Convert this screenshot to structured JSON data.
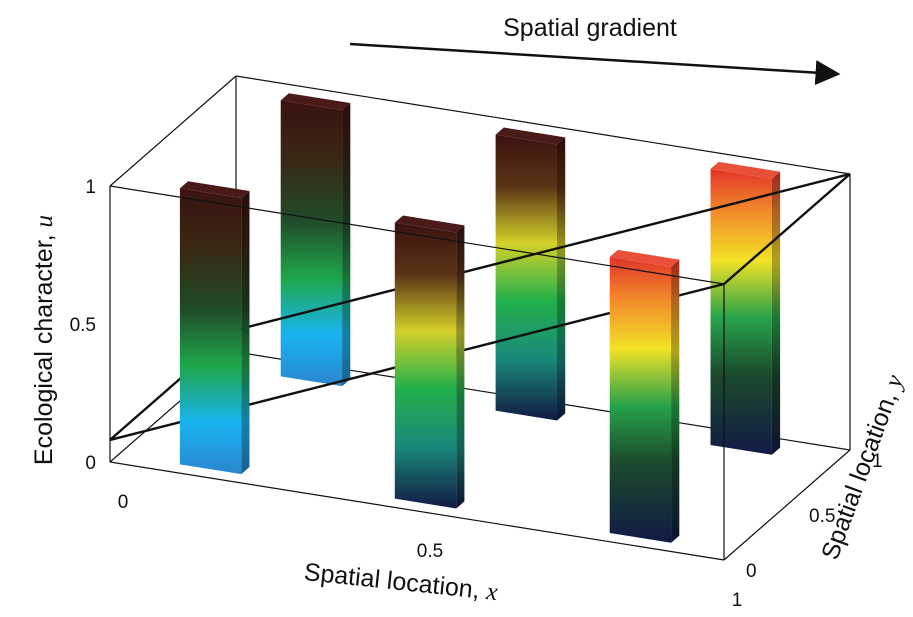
{
  "chart_data": {
    "type": "3d-bar",
    "annotation": "Spatial gradient",
    "xlabel": "Spatial location, ",
    "xvar": "x",
    "ylabel": "Spatial location, ",
    "yvar": "y",
    "zlabel": "Ecological character, ",
    "zvar": "u",
    "x_ticks": [
      "0",
      "0.5",
      "1"
    ],
    "y_ticks": [
      "0",
      "0.5",
      "1"
    ],
    "z_ticks": [
      "0",
      "0.5",
      "1"
    ],
    "xlim": [
      0,
      1
    ],
    "ylim": [
      0,
      1
    ],
    "zlim": [
      0,
      1
    ],
    "bars": [
      {
        "x": 0.15,
        "y": 0.1,
        "u_bottom": 0.0,
        "u_top": 1.0,
        "palette": "blue-green-brown"
      },
      {
        "x": 0.5,
        "y": 0.1,
        "u_bottom": 0.0,
        "u_top": 1.0,
        "palette": "navy-green-brown"
      },
      {
        "x": 0.85,
        "y": 0.1,
        "u_bottom": 0.0,
        "u_top": 1.0,
        "palette": "navy-green-yellow-red"
      },
      {
        "x": 0.15,
        "y": 0.9,
        "u_bottom": 0.0,
        "u_top": 1.0,
        "palette": "blue-green-brown"
      },
      {
        "x": 0.5,
        "y": 0.9,
        "u_bottom": 0.0,
        "u_top": 1.0,
        "palette": "navy-green-brown"
      },
      {
        "x": 0.85,
        "y": 0.9,
        "u_bottom": 0.0,
        "u_top": 1.0,
        "palette": "navy-green-yellow-red"
      }
    ],
    "gradient_plane": {
      "u_at_x0": 0.08,
      "u_at_x1": 1.0
    },
    "colors": {
      "brown": "#3a1210",
      "green": "#1fa64a",
      "blue": "#19b3f0",
      "navy": "#121a45",
      "yellow": "#f3e227",
      "orange": "#f28a2b",
      "red": "#e13528"
    }
  }
}
